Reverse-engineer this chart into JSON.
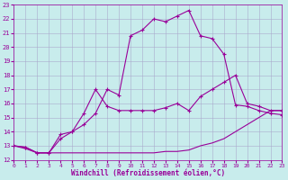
{
  "xlabel": "Windchill (Refroidissement éolien,°C)",
  "background_color": "#c8ecec",
  "line_color": "#990099",
  "grid_color": "#aaaacc",
  "xlim": [
    0,
    23
  ],
  "ylim": [
    12,
    23
  ],
  "xticks": [
    0,
    1,
    2,
    3,
    4,
    5,
    6,
    7,
    8,
    9,
    10,
    11,
    12,
    13,
    14,
    15,
    16,
    17,
    18,
    19,
    20,
    21,
    22,
    23
  ],
  "yticks": [
    12,
    13,
    14,
    15,
    16,
    17,
    18,
    19,
    20,
    21,
    22,
    23
  ],
  "line1_x": [
    0,
    1,
    2,
    3,
    4,
    5,
    6,
    7,
    8,
    9,
    10,
    11,
    12,
    13,
    14,
    15,
    16,
    17,
    18,
    19,
    20,
    21,
    22,
    23
  ],
  "line1_y": [
    13.0,
    12.8,
    12.5,
    12.5,
    12.5,
    12.5,
    12.5,
    12.5,
    12.5,
    12.5,
    12.5,
    12.5,
    12.5,
    12.6,
    12.6,
    12.7,
    13.0,
    13.2,
    13.5,
    14.0,
    14.5,
    15.0,
    15.5,
    15.5
  ],
  "line2_x": [
    0,
    1,
    2,
    3,
    4,
    5,
    6,
    7,
    8,
    9,
    10,
    11,
    12,
    13,
    14,
    15,
    16,
    17,
    18,
    19,
    20,
    21,
    22,
    23
  ],
  "line2_y": [
    13.0,
    12.9,
    12.5,
    12.5,
    13.5,
    14.0,
    15.3,
    17.0,
    15.8,
    15.5,
    15.5,
    15.5,
    15.5,
    15.7,
    16.0,
    15.5,
    16.5,
    17.0,
    17.5,
    18.0,
    16.0,
    15.8,
    15.5,
    15.5
  ],
  "line3_x": [
    0,
    1,
    2,
    3,
    4,
    5,
    6,
    7,
    8,
    9,
    10,
    11,
    12,
    13,
    14,
    15,
    16,
    17,
    18,
    19,
    20,
    21,
    22,
    23
  ],
  "line3_y": [
    13.0,
    12.9,
    12.5,
    12.5,
    13.8,
    14.0,
    14.5,
    15.3,
    17.0,
    16.6,
    20.8,
    21.2,
    22.0,
    21.8,
    22.2,
    22.6,
    20.8,
    20.6,
    19.5,
    15.9,
    15.8,
    15.5,
    15.3,
    15.2
  ]
}
